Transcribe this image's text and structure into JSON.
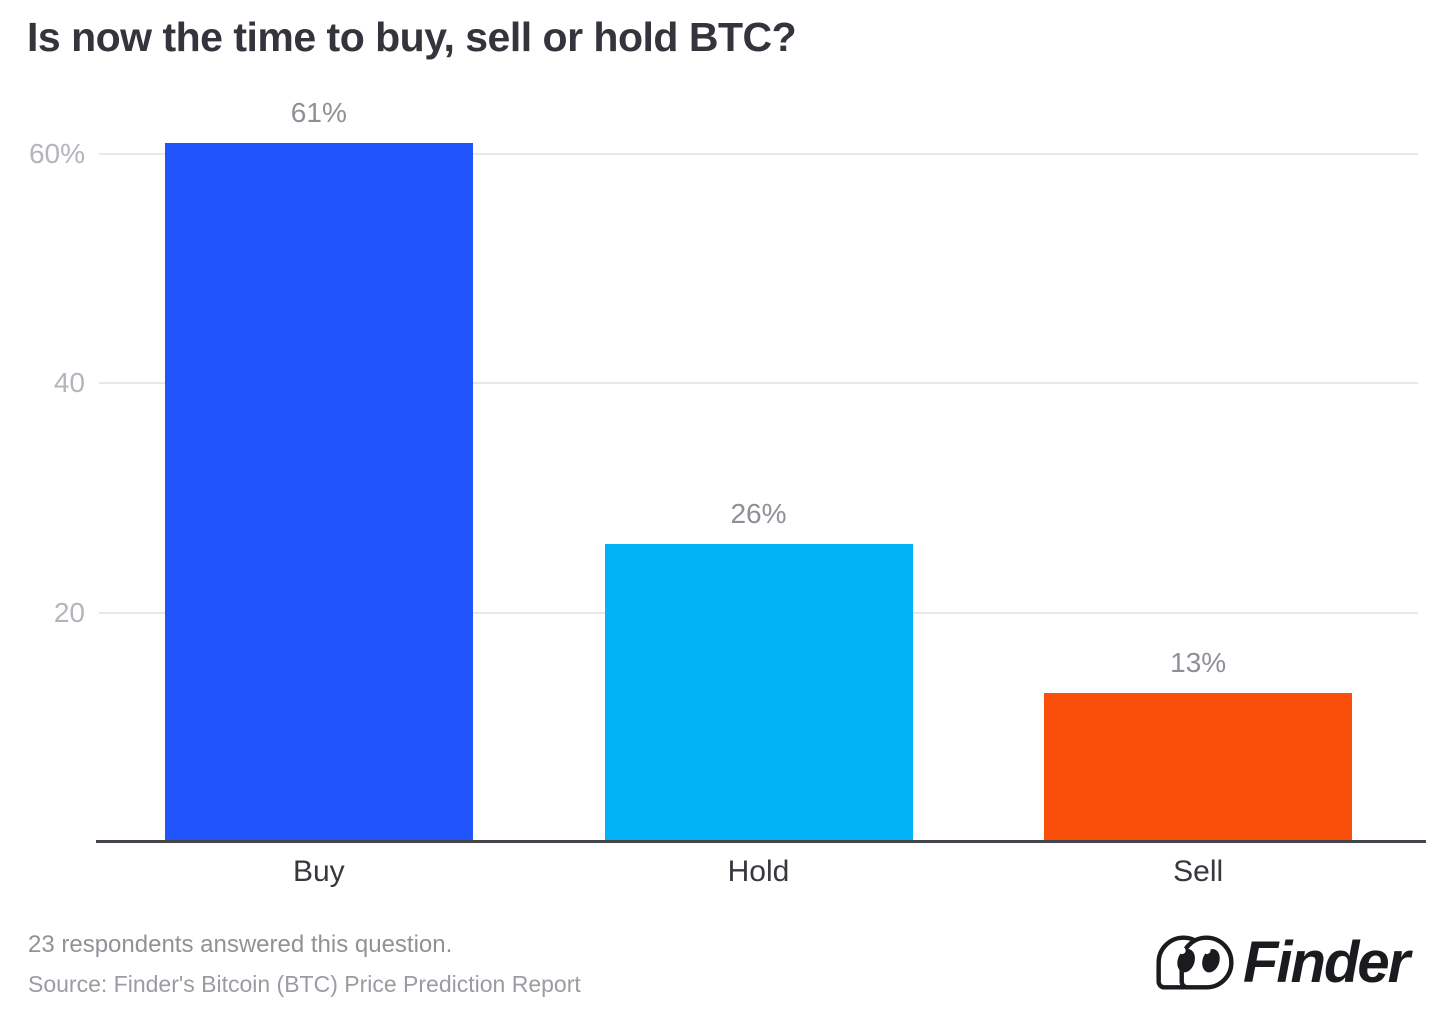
{
  "title": "Is now the time to buy, sell or hold BTC?",
  "chart_data": {
    "type": "bar",
    "title": "Is now the time to buy, sell or hold BTC?",
    "categories": [
      "Buy",
      "Hold",
      "Sell"
    ],
    "values": [
      61,
      26,
      13
    ],
    "value_labels": [
      "61%",
      "26%",
      "13%"
    ],
    "bar_colors": [
      "#2054fa",
      "#01b4f8",
      "#fa4f0b"
    ],
    "xlabel": "",
    "ylabel": "",
    "ylim": [
      0,
      65
    ],
    "yticks": [
      {
        "value": 60,
        "label": "60%"
      },
      {
        "value": 40,
        "label": "40"
      },
      {
        "value": 20,
        "label": "20"
      }
    ],
    "grid": true,
    "legend": false
  },
  "footer": {
    "respondents_note": "23 respondents answered this question.",
    "source": "Source: Finder's Bitcoin (BTC) Price Prediction Report"
  },
  "branding": {
    "logo_text": "Finder",
    "logo_mark": "finder-eyes-icon"
  },
  "colors": {
    "background": "#ffffff",
    "title_text": "#34343c",
    "axis_line": "#45454d",
    "gridline": "#e8e8ea",
    "tick_label": "#b2b5bb",
    "value_label": "#8d9197",
    "category_label": "#37373e",
    "footer_text": "#909298",
    "logo_color": "#1b1b1f"
  }
}
